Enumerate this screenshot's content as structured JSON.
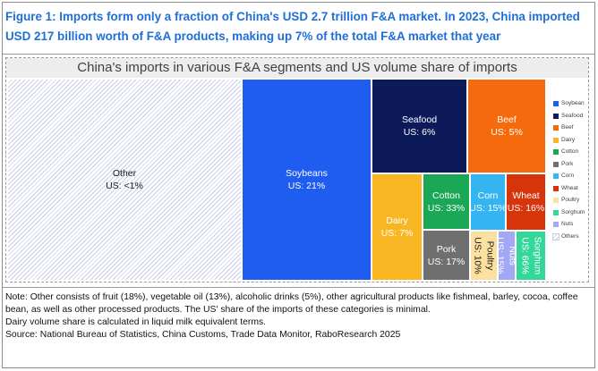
{
  "figure_title": "Figure 1: Imports form only a fraction of China's USD 2.7 trillion F&A market. In 2023, China imported USD 217 billion worth of F&A products, making up 7% of the total F&A market that year",
  "notes": [
    "Note: Other consists of fruit (18%), vegetable oil (13%), alcoholic drinks (5%), other agricultural products like fishmeal, barley, cocoa, coffee bean, as well as other processed products. The US' share of the imports of these categories is minimal.",
    "Dairy volume share is calculated in liquid milk equivalent terms.",
    "Source: National Bureau of Statistics, China Customs, Trade Data Monitor, RaboResearch 2025"
  ],
  "chart_data": {
    "type": "treemap",
    "title": "China's imports in various F&A segments and US volume share of imports",
    "legend_position": "right",
    "segments": [
      {
        "name": "Other",
        "label": "US: <1%",
        "color": "#ffffff",
        "pattern": "hatch"
      },
      {
        "name": "Soybeans",
        "label": "US: 21%",
        "color": "#1f5cf0"
      },
      {
        "name": "Seafood",
        "label": "US: 6%",
        "color": "#0c1a5a"
      },
      {
        "name": "Beef",
        "label": "US: 5%",
        "color": "#f46a0c"
      },
      {
        "name": "Dairy",
        "label": "US: 7%",
        "color": "#f8b722"
      },
      {
        "name": "Cotton",
        "label": "US: 33%",
        "color": "#1aa857"
      },
      {
        "name": "Corn",
        "label": "US: 15%",
        "color": "#34b4f0"
      },
      {
        "name": "Wheat",
        "label": "US: 16%",
        "color": "#d6350c"
      },
      {
        "name": "Pork",
        "label": "US: 17%",
        "color": "#6f6f6f"
      },
      {
        "name": "Poultry",
        "label": "US: 10%",
        "color": "#fbe0a0"
      },
      {
        "name": "Nuts",
        "label": "US: 15%",
        "color": "#a2a8f4"
      },
      {
        "name": "Sorghum",
        "label": "US: 66%",
        "color": "#33d79a"
      }
    ],
    "legend": [
      {
        "name": "Soybean",
        "color": "#1f5cf0"
      },
      {
        "name": "Seafood",
        "color": "#0c1a5a"
      },
      {
        "name": "Beef",
        "color": "#f46a0c"
      },
      {
        "name": "Dairy",
        "color": "#f8b722"
      },
      {
        "name": "Cotton",
        "color": "#1aa857"
      },
      {
        "name": "Pork",
        "color": "#6f6f6f"
      },
      {
        "name": "Corn",
        "color": "#34b4f0"
      },
      {
        "name": "Wheat",
        "color": "#d6350c"
      },
      {
        "name": "Poultry",
        "color": "#fbe0a0"
      },
      {
        "name": "Sorghum",
        "color": "#33d79a"
      },
      {
        "name": "Nuts",
        "color": "#a2a8f4"
      },
      {
        "name": "Others",
        "color": "#ffffff",
        "pattern": "hatch"
      }
    ]
  }
}
